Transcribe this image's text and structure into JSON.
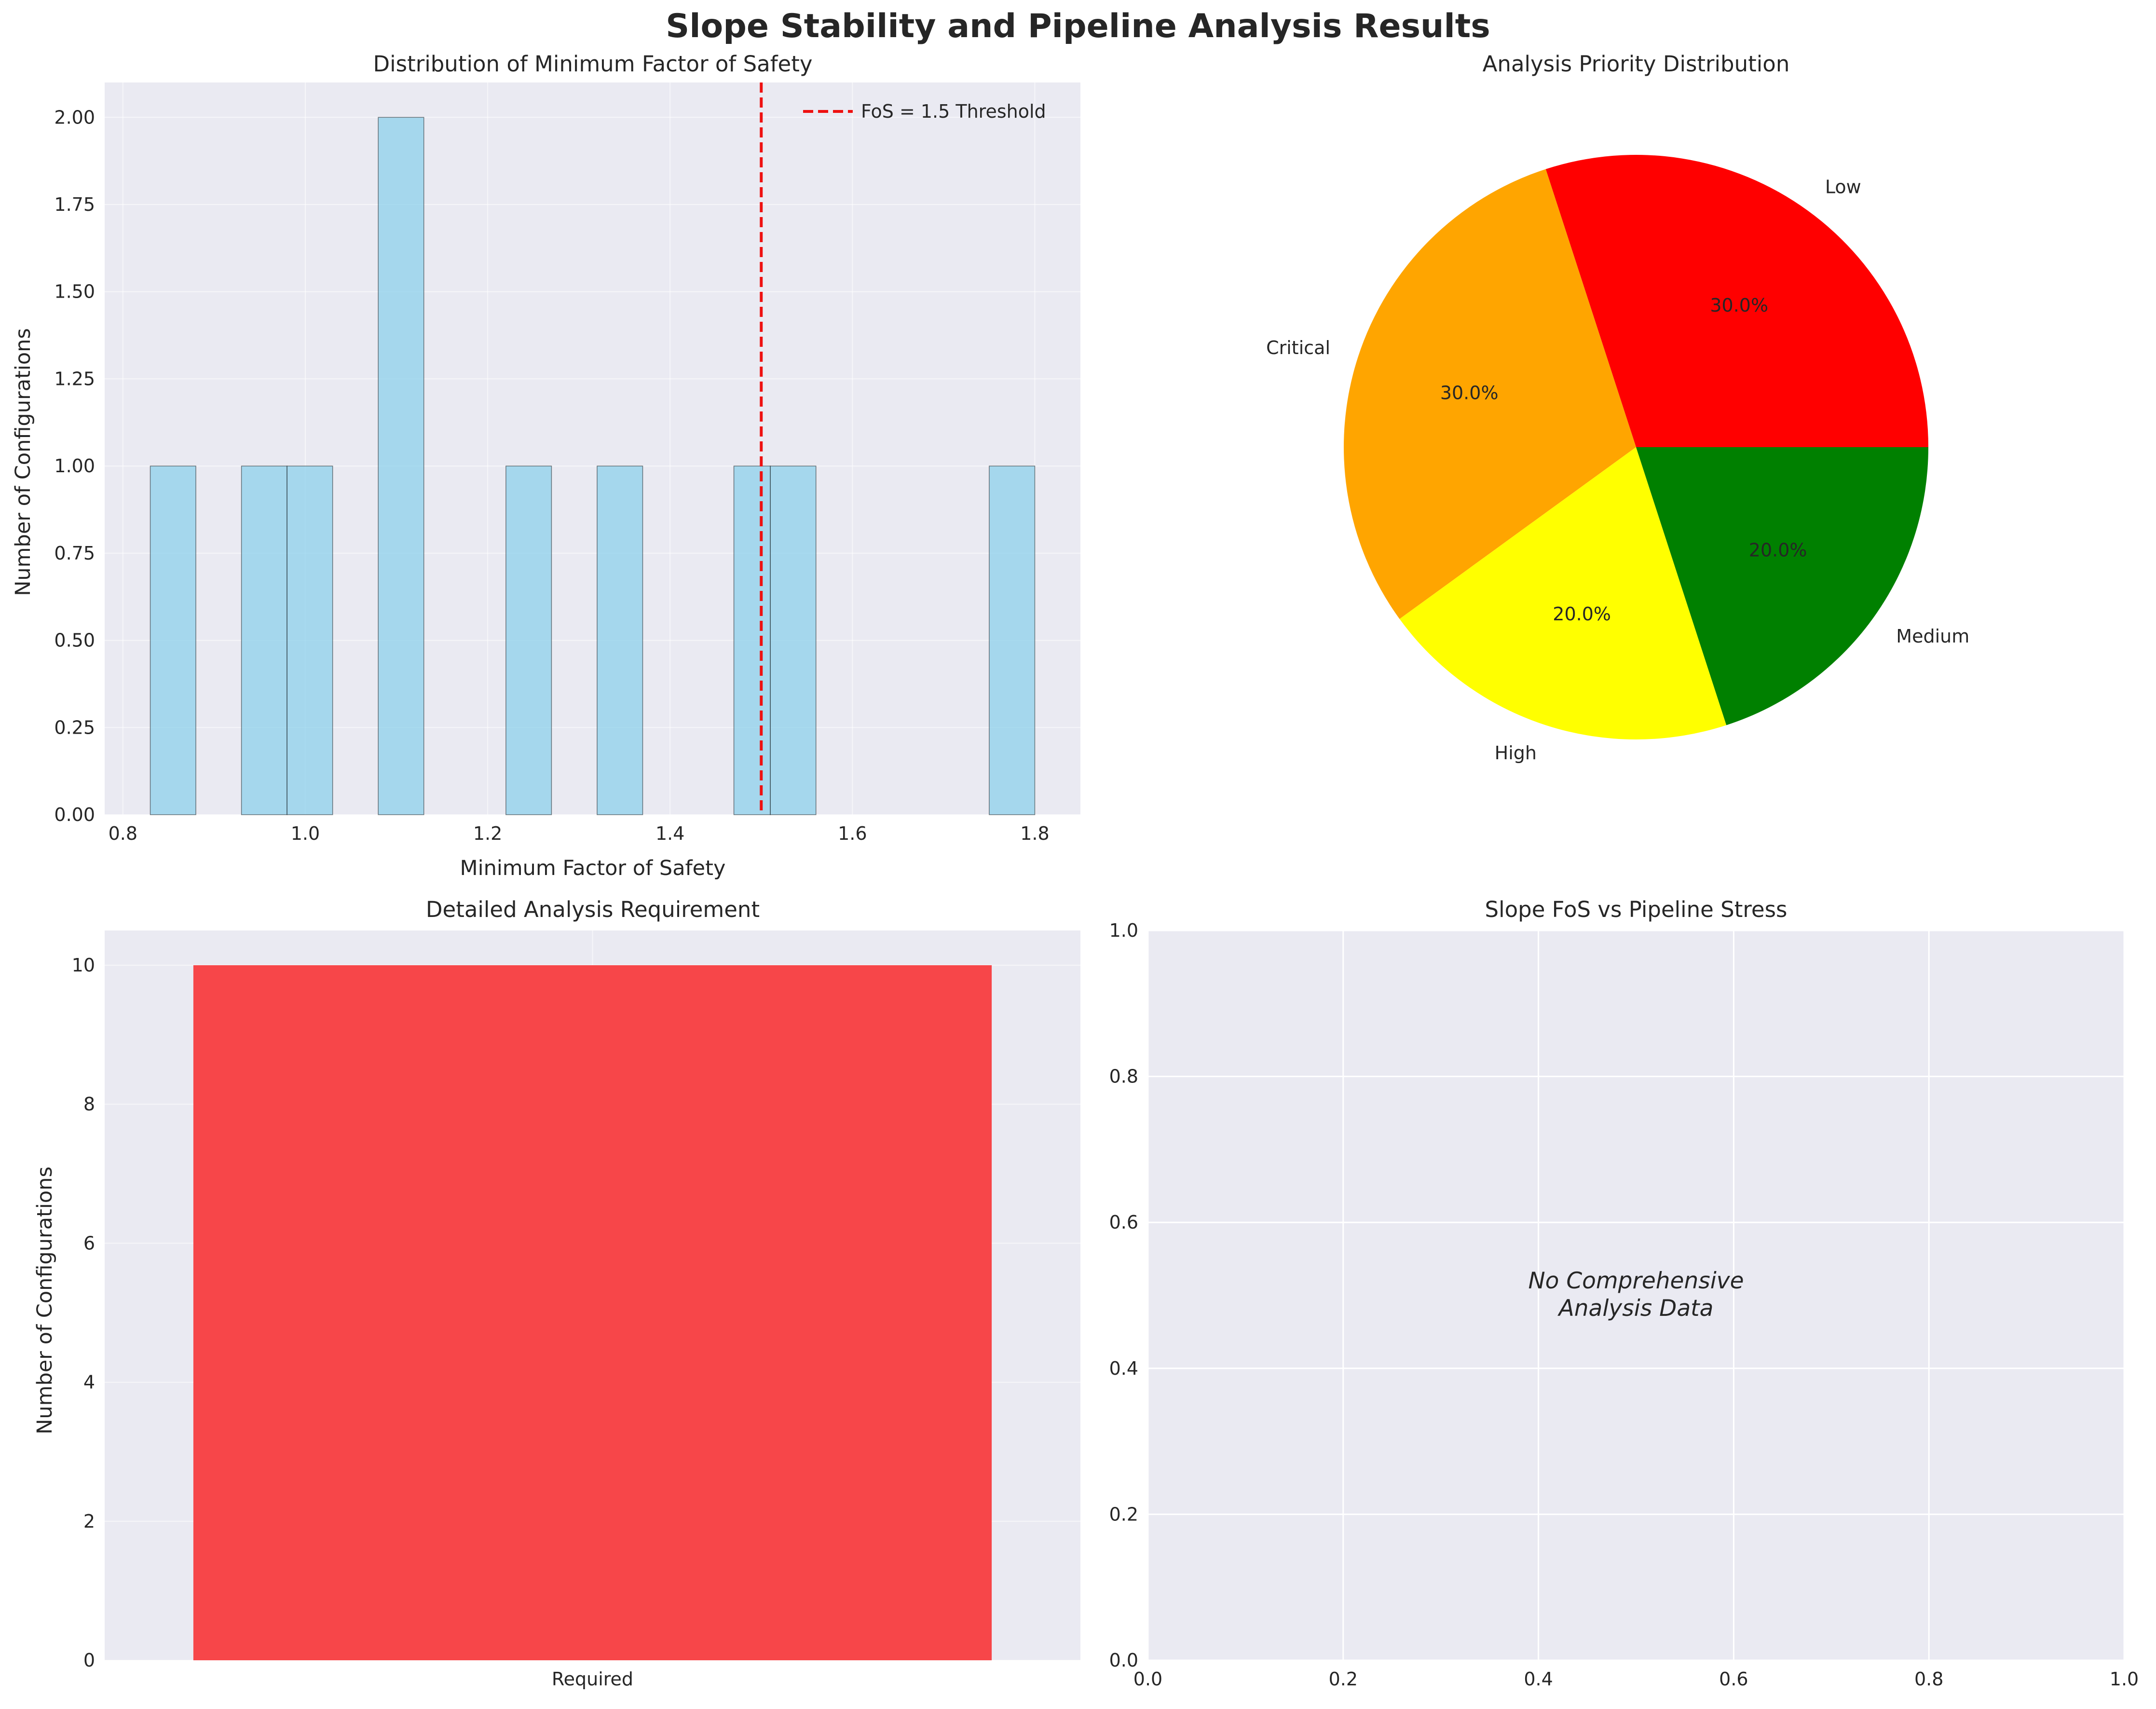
{
  "figure": {
    "title": "Slope Stability and Pipeline Analysis Results",
    "background": "#ffffff",
    "axes_facecolor": "#eaeaf2",
    "grid_color": "#ffffff"
  },
  "chart_data": [
    {
      "type": "bar",
      "subtype": "histogram",
      "title": "Distribution of Minimum Factor of Safety",
      "xlabel": "Minimum Factor of Safety",
      "ylabel": "Number of Configurations",
      "xlim": [
        0.78,
        1.85
      ],
      "ylim": [
        0,
        2.1
      ],
      "xticks": [
        "0.8",
        "1.0",
        "1.2",
        "1.4",
        "1.6",
        "1.8"
      ],
      "yticks": [
        "0.00",
        "0.25",
        "0.50",
        "0.75",
        "1.00",
        "1.25",
        "1.50",
        "1.75",
        "2.00"
      ],
      "bar_color": "#87ceeb",
      "bins": [
        {
          "x0": 0.83,
          "x1": 0.88,
          "count": 1
        },
        {
          "x0": 0.93,
          "x1": 0.98,
          "count": 1
        },
        {
          "x0": 0.98,
          "x1": 1.03,
          "count": 1
        },
        {
          "x0": 1.08,
          "x1": 1.13,
          "count": 2
        },
        {
          "x0": 1.22,
          "x1": 1.27,
          "count": 1
        },
        {
          "x0": 1.32,
          "x1": 1.37,
          "count": 1
        },
        {
          "x0": 1.47,
          "x1": 1.51,
          "count": 1
        },
        {
          "x0": 1.51,
          "x1": 1.56,
          "count": 1
        },
        {
          "x0": 1.75,
          "x1": 1.8,
          "count": 1
        }
      ],
      "threshold": {
        "value": 1.5,
        "label": "FoS = 1.5 Threshold",
        "color": "#ee1111"
      },
      "legend": "top-right",
      "grid": true
    },
    {
      "type": "pie",
      "title": "Analysis Priority Distribution",
      "slices": [
        {
          "label": "Low",
          "value": 30.0,
          "pct_label": "30.0%",
          "color": "#ff0000"
        },
        {
          "label": "Critical",
          "value": 30.0,
          "pct_label": "30.0%",
          "color": "#ffa500"
        },
        {
          "label": "High",
          "value": 20.0,
          "pct_label": "20.0%",
          "color": "#ffff00"
        },
        {
          "label": "Medium",
          "value": 20.0,
          "pct_label": "20.0%",
          "color": "#008000"
        }
      ]
    },
    {
      "type": "bar",
      "title": "Detailed Analysis Requirement",
      "xlabel": "",
      "ylabel": "Number of Configurations",
      "categories": [
        "Required"
      ],
      "values": [
        10
      ],
      "ylim": [
        0,
        10.5
      ],
      "yticks": [
        "0",
        "2",
        "4",
        "6",
        "8",
        "10"
      ],
      "bar_color": "#f74649",
      "grid": true
    },
    {
      "type": "scatter",
      "title": "Slope FoS vs Pipeline Stress",
      "xlim": [
        0,
        1
      ],
      "ylim": [
        0,
        1
      ],
      "xticks": [
        "0.0",
        "0.2",
        "0.4",
        "0.6",
        "0.8",
        "1.0"
      ],
      "yticks": [
        "0.0",
        "0.2",
        "0.4",
        "0.6",
        "0.8",
        "1.0"
      ],
      "note_lines": [
        "No Comprehensive",
        "Analysis Data"
      ],
      "points": [],
      "grid": true
    }
  ]
}
